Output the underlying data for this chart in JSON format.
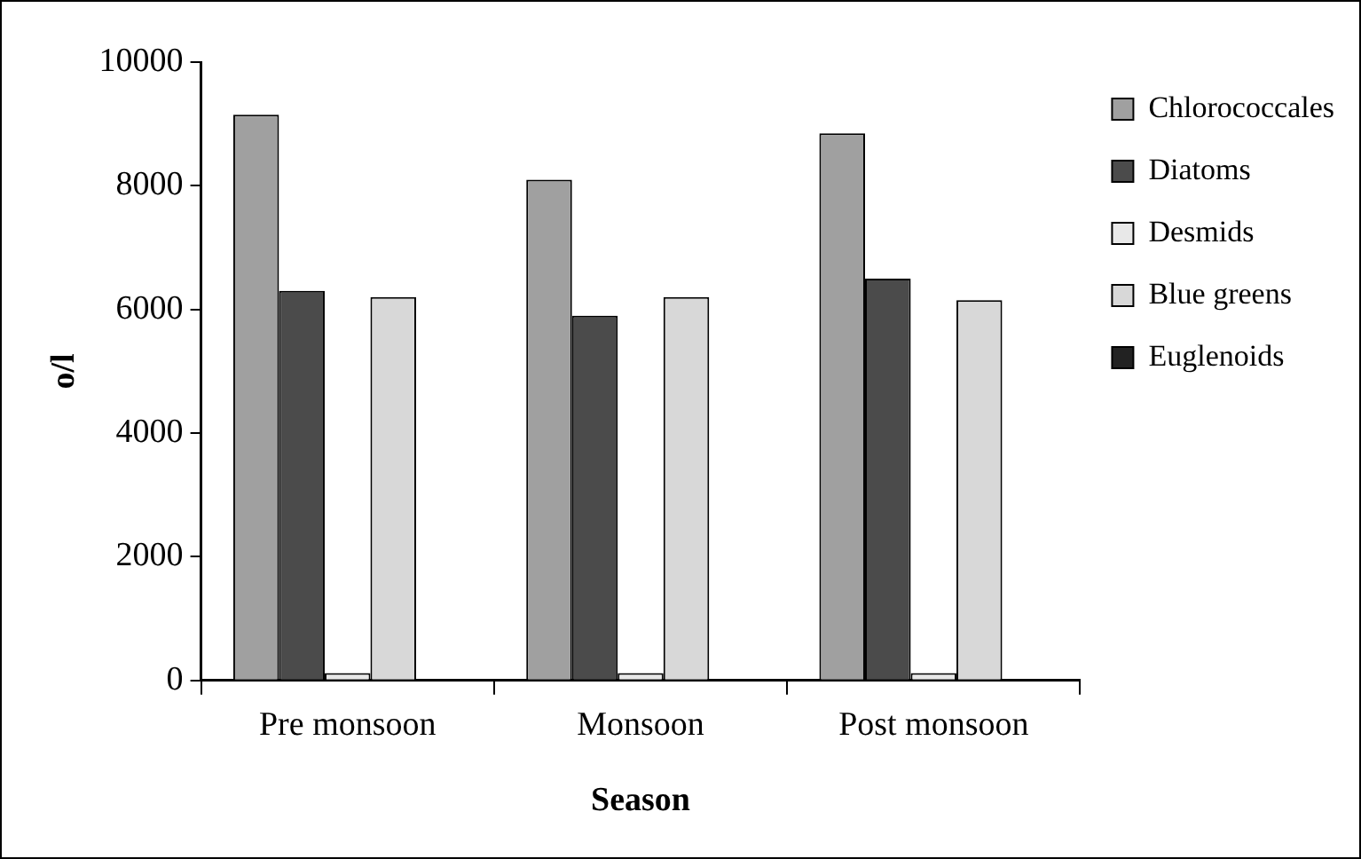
{
  "chart_data": {
    "type": "bar",
    "xlabel": "Season",
    "ylabel": "o/l",
    "categories": [
      "Pre monsoon",
      "Monsoon",
      "Post monsoon"
    ],
    "series": [
      {
        "name": "Chlorococcales",
        "color": "#a0a0a0",
        "values": [
          9150,
          8100,
          8850
        ]
      },
      {
        "name": "Diatoms",
        "color": "#4b4b4b",
        "values": [
          6300,
          5900,
          6500
        ]
      },
      {
        "name": "Desmids",
        "color": "#e8e8e8",
        "values": [
          120,
          120,
          120
        ]
      },
      {
        "name": "Blue greens",
        "color": "#d8d8d8",
        "values": [
          6200,
          6200,
          6150
        ]
      },
      {
        "name": "Euglenoids",
        "color": "#222222",
        "values": [
          0,
          0,
          0
        ]
      }
    ],
    "ylim": [
      0,
      10000
    ],
    "yticks": [
      0,
      2000,
      4000,
      6000,
      8000,
      10000
    ],
    "grid": false,
    "legend": "top right"
  }
}
